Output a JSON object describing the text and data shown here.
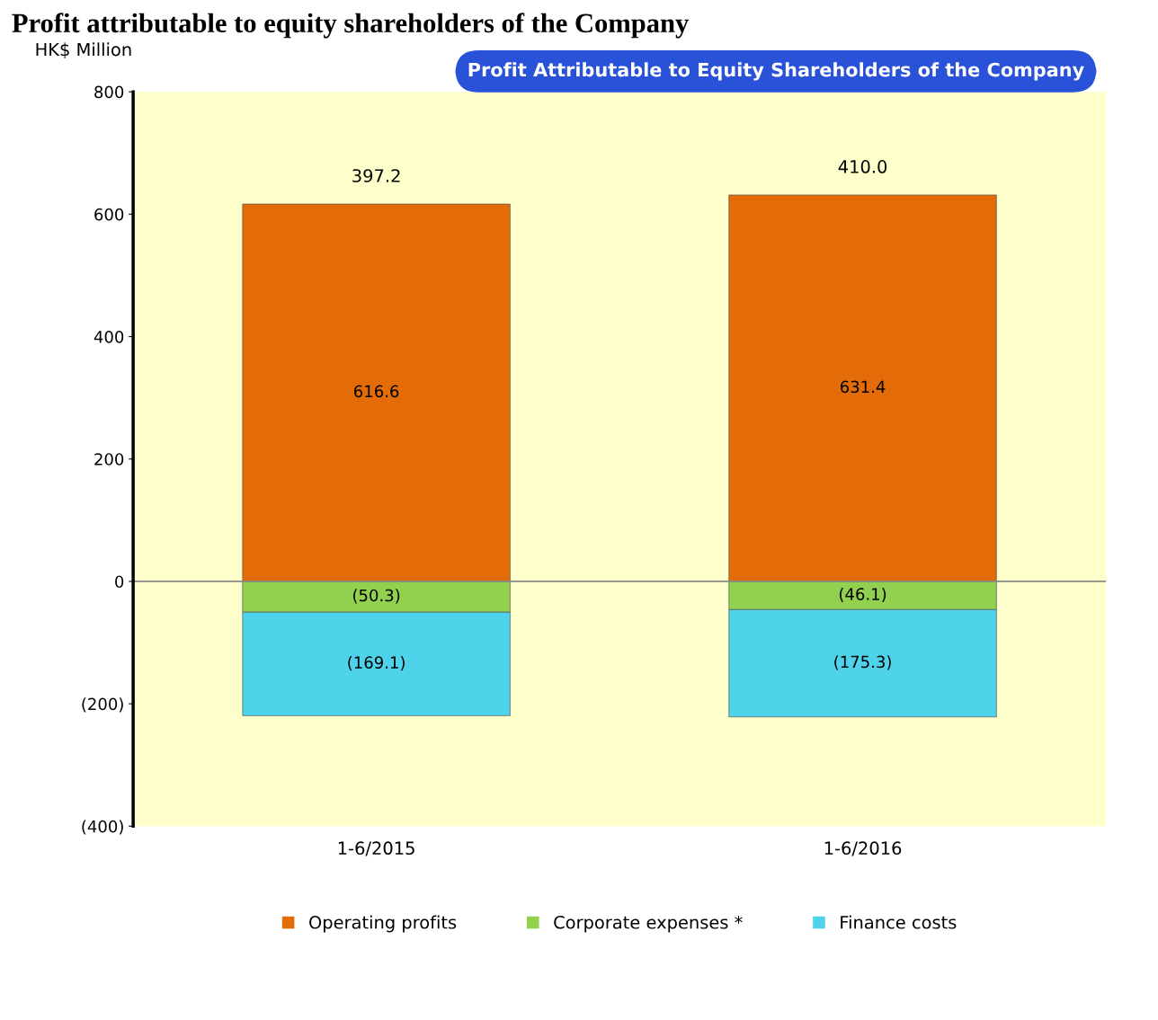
{
  "chart_data": {
    "type": "bar",
    "stacked": true,
    "title": "Profit attributable to equity shareholders of the Company",
    "subtitle": "Profit Attributable to Equity Shareholders of the Company",
    "ylabel": "HK$ Million",
    "categories": [
      "1-6/2015",
      "1-6/2016"
    ],
    "series": [
      {
        "name": "Operating profits",
        "color": "#e36c09",
        "values": [
          616.6,
          631.4
        ],
        "value_labels": [
          "616.6",
          "631.4"
        ]
      },
      {
        "name": "Corporate expenses *",
        "color": "#92d050",
        "values": [
          -50.3,
          -46.1
        ],
        "value_labels": [
          "(50.3)",
          "(46.1)"
        ]
      },
      {
        "name": "Finance costs",
        "color": "#4fd3ea",
        "values": [
          -169.1,
          -175.3
        ],
        "value_labels": [
          "(169.1)",
          "(175.3)"
        ]
      }
    ],
    "totals": [
      "397.2",
      "410.0"
    ],
    "ylim": [
      -400,
      800
    ],
    "yticks": [
      {
        "value": -400,
        "label": "(400)"
      },
      {
        "value": -200,
        "label": "(200)"
      },
      0,
      200,
      400,
      600,
      800
    ],
    "ref_lines": [
      {
        "axis": "y",
        "value": 0,
        "color": "#888888"
      }
    ],
    "legend": "bottom",
    "grid": false
  }
}
